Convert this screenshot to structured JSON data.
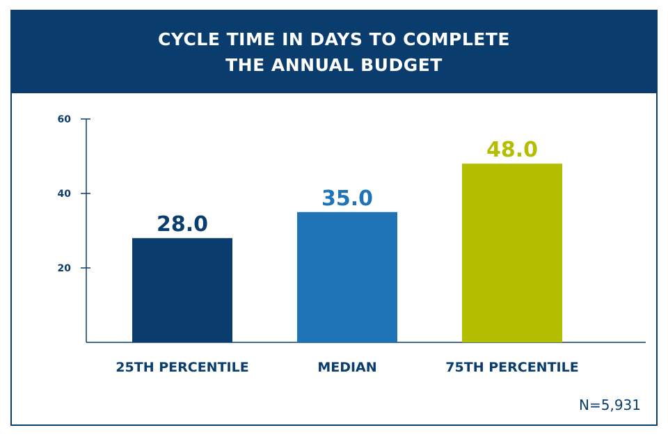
{
  "chart_data": {
    "type": "bar",
    "title_lines": [
      "CYCLE TIME IN DAYS TO COMPLETE",
      "THE ANNUAL BUDGET"
    ],
    "categories": [
      "25TH PERCENTILE",
      "MEDIAN",
      "75TH PERCENTILE"
    ],
    "values": [
      28.0,
      35.0,
      48.0
    ],
    "value_labels": [
      "28.0",
      "35.0",
      "48.0"
    ],
    "colors": [
      "#0a3d6e",
      "#1f73b7",
      "#b4be00"
    ],
    "yticks": [
      20,
      40,
      60
    ],
    "ylim": [
      0,
      60
    ],
    "xlabel": "",
    "ylabel": "",
    "grid": false,
    "footnote": "N=5,931"
  },
  "theme": {
    "header_bg": "#0a3d6e",
    "axis_color": "#0a3d6e",
    "text_color": "#0a3d6e"
  }
}
